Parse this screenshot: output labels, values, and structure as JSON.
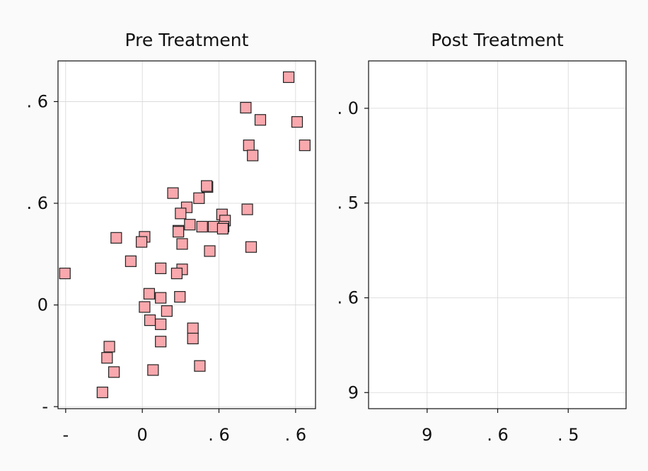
{
  "chart_data": [
    {
      "type": "scatter",
      "title": "Pre Treatment",
      "xlabel": "",
      "ylabel": "",
      "x_ticks": [
        {
          "value": -1.0,
          "label": "-"
        },
        {
          "value": 0.0,
          "label": "0"
        },
        {
          "value": 1.0,
          "label": ". 6"
        },
        {
          "value": 2.0,
          "label": ". 6"
        }
      ],
      "y_ticks": [
        {
          "value": -1.0,
          "label": "-"
        },
        {
          "value": 0.0,
          "label": "0"
        },
        {
          "value": 1.0,
          "label": ". 6"
        },
        {
          "value": 2.0,
          "label": ". 6"
        }
      ],
      "xlim": [
        -1.1,
        2.26
      ],
      "ylim": [
        -1.02,
        2.4
      ],
      "grid": true,
      "marker": "square",
      "marker_color": "#f9a8ad",
      "marker_edge": "#222222",
      "points": [
        {
          "x": 1.91,
          "y": 2.24
        },
        {
          "x": 1.35,
          "y": 1.94
        },
        {
          "x": 1.54,
          "y": 1.82
        },
        {
          "x": 2.02,
          "y": 1.8
        },
        {
          "x": 1.39,
          "y": 1.57
        },
        {
          "x": 1.44,
          "y": 1.47
        },
        {
          "x": 2.12,
          "y": 1.57
        },
        {
          "x": 0.85,
          "y": 1.16
        },
        {
          "x": 0.84,
          "y": 1.17
        },
        {
          "x": 0.74,
          "y": 1.05
        },
        {
          "x": 0.4,
          "y": 1.1
        },
        {
          "x": 0.58,
          "y": 0.96
        },
        {
          "x": 0.5,
          "y": 0.9
        },
        {
          "x": 1.37,
          "y": 0.94
        },
        {
          "x": 1.04,
          "y": 0.89
        },
        {
          "x": 1.08,
          "y": 0.83
        },
        {
          "x": 1.06,
          "y": 0.77
        },
        {
          "x": 0.62,
          "y": 0.79
        },
        {
          "x": 0.78,
          "y": 0.77
        },
        {
          "x": 0.93,
          "y": 0.77
        },
        {
          "x": 0.47,
          "y": 0.73
        },
        {
          "x": 0.47,
          "y": 0.72
        },
        {
          "x": 1.05,
          "y": 0.75
        },
        {
          "x": 0.03,
          "y": 0.67
        },
        {
          "x": -0.34,
          "y": 0.66
        },
        {
          "x": -0.01,
          "y": 0.62
        },
        {
          "x": 0.52,
          "y": 0.6
        },
        {
          "x": 1.42,
          "y": 0.57
        },
        {
          "x": 0.88,
          "y": 0.53
        },
        {
          "x": -0.15,
          "y": 0.43
        },
        {
          "x": 0.24,
          "y": 0.36
        },
        {
          "x": 0.52,
          "y": 0.35
        },
        {
          "x": -1.01,
          "y": 0.31
        },
        {
          "x": 0.45,
          "y": 0.31
        },
        {
          "x": 0.09,
          "y": 0.11
        },
        {
          "x": 0.24,
          "y": 0.07
        },
        {
          "x": 0.49,
          "y": 0.08
        },
        {
          "x": 0.03,
          "y": -0.02
        },
        {
          "x": 0.32,
          "y": -0.06
        },
        {
          "x": 0.1,
          "y": -0.15
        },
        {
          "x": 0.24,
          "y": -0.19
        },
        {
          "x": 0.66,
          "y": -0.23
        },
        {
          "x": 0.66,
          "y": -0.33
        },
        {
          "x": 0.24,
          "y": -0.36
        },
        {
          "x": -0.43,
          "y": -0.41
        },
        {
          "x": -0.46,
          "y": -0.52
        },
        {
          "x": -0.37,
          "y": -0.66
        },
        {
          "x": 0.14,
          "y": -0.64
        },
        {
          "x": 0.75,
          "y": -0.6
        },
        {
          "x": -0.52,
          "y": -0.86
        }
      ]
    },
    {
      "type": "scatter",
      "title": "Post Treatment",
      "xlabel": "",
      "ylabel": "",
      "x_ticks": [
        {
          "value": 1.0,
          "label": "9"
        },
        {
          "value": 2.0,
          "label": ". 6"
        },
        {
          "value": 3.0,
          "label": ". 5"
        }
      ],
      "y_ticks": [
        {
          "value": 3.0,
          "label": ". 0"
        },
        {
          "value": 2.0,
          "label": ". 5"
        },
        {
          "value": 1.0,
          "label": ". 6"
        },
        {
          "value": 0.0,
          "label": "9"
        }
      ],
      "xlim": [
        0.17,
        3.82
      ],
      "ylim": [
        -0.17,
        3.5
      ],
      "grid": true,
      "points": []
    }
  ]
}
